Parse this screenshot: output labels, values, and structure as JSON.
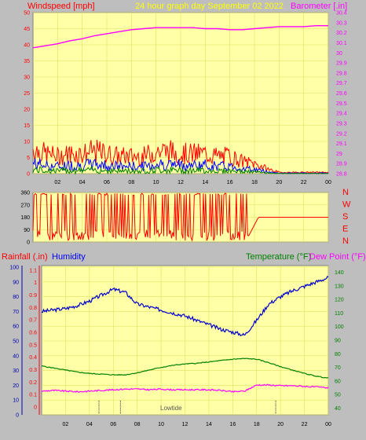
{
  "header": {
    "left_label": "Windspeed [mph]",
    "center_label": "24 hour graph day   September 02 2022",
    "right_label": "Barometer [.in]"
  },
  "bottom_header": {
    "rainfall_label": "Rainfall (.in)",
    "humidity_label": "Humidity",
    "temperature_label": "Temperature (°F)",
    "dewpoint_label": "Dew Point (°F)"
  },
  "compass": [
    "N",
    "W",
    "S",
    "E",
    "N"
  ],
  "annotation": "Lowtide",
  "time_ticks": [
    "02",
    "04",
    "06",
    "08",
    "10",
    "12",
    "14",
    "16",
    "18",
    "20",
    "22",
    "00"
  ],
  "colors": {
    "panel_bg": "#ffffa8",
    "grid": "#e0e060",
    "wind_speed": "#ff0000",
    "wind_gust_avg": "#0000ff",
    "wind_low": "#008000",
    "barometer": "#ff00ff",
    "humidity": "#0000cc",
    "temperature": "#008000",
    "dewpoint": "#ff00ff",
    "rainfall": "#ff0000",
    "header_red": "#ff0000",
    "header_yellow": "#ffff00",
    "header_blue": "#0000ff",
    "header_magenta": "#ff00ff",
    "header_green": "#008000"
  },
  "chart_data": [
    {
      "type": "line",
      "name": "windspeed-barometer",
      "x_ticks": [
        "02",
        "04",
        "06",
        "08",
        "10",
        "12",
        "14",
        "16",
        "18",
        "20",
        "22",
        "00"
      ],
      "y_left": {
        "label": "Windspeed [mph]",
        "ylim": [
          0,
          50
        ],
        "ticks": [
          0,
          5,
          10,
          15,
          20,
          25,
          30,
          35,
          40,
          45,
          50
        ]
      },
      "y_right": {
        "label": "Barometer [.in]",
        "ylim": [
          28.8,
          30.4
        ],
        "ticks": [
          "28.8",
          "28.9",
          "29",
          "29.1",
          "29.2",
          "29.3",
          "29.4",
          "29.5",
          "29.6",
          "29.7",
          "29.8",
          "29.9",
          "30",
          "30.1",
          "30.2",
          "30.3",
          "30.4"
        ]
      },
      "series": [
        {
          "name": "Windspeed",
          "x": [
            0,
            1,
            2,
            3,
            4,
            5,
            6,
            7,
            8,
            9,
            10,
            11,
            12,
            13,
            14,
            15,
            16,
            17,
            18,
            19,
            20,
            21,
            22,
            23,
            24
          ],
          "values": [
            10,
            8,
            7,
            8,
            8,
            9,
            8,
            7,
            7,
            7,
            9,
            9,
            8,
            8,
            8,
            7,
            7,
            5,
            4,
            2,
            0.5,
            0.5,
            0.5,
            0.5,
            0.5
          ]
        },
        {
          "name": "Barometer",
          "x": [
            0,
            1,
            2,
            3,
            4,
            5,
            6,
            7,
            8,
            9,
            10,
            11,
            12,
            13,
            14,
            15,
            16,
            17,
            18,
            19,
            20,
            21,
            22,
            23,
            24
          ],
          "values": [
            30.05,
            30.07,
            30.09,
            30.12,
            30.14,
            30.17,
            30.19,
            30.21,
            30.23,
            30.24,
            30.25,
            30.25,
            30.25,
            30.25,
            30.24,
            30.24,
            30.23,
            30.23,
            30.24,
            30.25,
            30.26,
            30.26,
            30.26,
            30.27,
            30.27
          ]
        }
      ]
    },
    {
      "type": "line",
      "name": "wind-direction",
      "y_ticks": [
        0,
        90,
        180,
        270,
        360
      ],
      "ylim": [
        0,
        360
      ],
      "series": [
        {
          "name": "Wind direction",
          "x": [
            0,
            2,
            4,
            6,
            8,
            10,
            12,
            14,
            16,
            17.5,
            18,
            18.5,
            20,
            22,
            24
          ],
          "values": [
            180,
            200,
            170,
            190,
            150,
            200,
            180,
            190,
            200,
            40,
            100,
            180,
            180,
            180,
            180
          ]
        }
      ]
    },
    {
      "type": "line",
      "name": "humidity-temperature",
      "y_rain": {
        "label": "Rainfall (.in)",
        "ylim": [
          0,
          1.2
        ],
        "ticks": [
          "0",
          "0.1",
          "0.2",
          "0.3",
          "0.4",
          "0.5",
          "0.6",
          "0.7",
          "0.8",
          "0.9",
          "1",
          "1.1"
        ]
      },
      "y_humidity": {
        "label": "Humidity",
        "ylim": [
          0,
          100
        ],
        "ticks": [
          0,
          10,
          20,
          30,
          40,
          50,
          60,
          70,
          80,
          90,
          100
        ]
      },
      "y_right": {
        "label": "Temperature (°F)",
        "ylim": [
          35,
          145
        ],
        "ticks": [
          40,
          50,
          60,
          70,
          80,
          90,
          100,
          110,
          120,
          130,
          140
        ]
      },
      "series": [
        {
          "name": "Humidity",
          "x": [
            0,
            1,
            2,
            3,
            4,
            5,
            6,
            7,
            8,
            9,
            10,
            11,
            12,
            13,
            14,
            15,
            16,
            17,
            18,
            19,
            20,
            21,
            22,
            23,
            24
          ],
          "values": [
            70,
            71,
            72,
            74,
            77,
            81,
            85,
            83,
            75,
            73,
            71,
            69,
            67,
            64,
            61,
            58,
            56,
            54,
            64,
            75,
            80,
            84,
            87,
            90,
            93
          ]
        },
        {
          "name": "Temperature",
          "x": [
            0,
            1,
            2,
            3,
            4,
            5,
            6,
            7,
            8,
            9,
            10,
            11,
            12,
            13,
            14,
            15,
            16,
            17,
            18,
            19,
            20,
            21,
            22,
            23,
            24
          ],
          "values": [
            71,
            69.5,
            68,
            66.5,
            65.5,
            65,
            64.5,
            64.5,
            66,
            68,
            70,
            71.5,
            72.5,
            73,
            74,
            75,
            76,
            76.5,
            76,
            73.5,
            70.5,
            68,
            65.5,
            63.5,
            62
          ]
        },
        {
          "name": "Dew Point",
          "x": [
            0,
            1,
            2,
            3,
            4,
            5,
            6,
            7,
            8,
            9,
            10,
            11,
            12,
            13,
            14,
            15,
            16,
            17,
            18,
            19,
            20,
            21,
            22,
            23,
            24
          ],
          "values": [
            52.5,
            53,
            52.5,
            52,
            52.5,
            53,
            53.5,
            54,
            54,
            53.5,
            54,
            53.5,
            53.5,
            53.5,
            53.5,
            53,
            52,
            52.5,
            57,
            57,
            56.5,
            56.5,
            56,
            55.5,
            55
          ]
        },
        {
          "name": "Rainfall",
          "x": [
            0,
            4.8,
            6.6,
            19.6,
            24
          ],
          "values": [
            0,
            0,
            0,
            0,
            0
          ]
        }
      ]
    }
  ]
}
